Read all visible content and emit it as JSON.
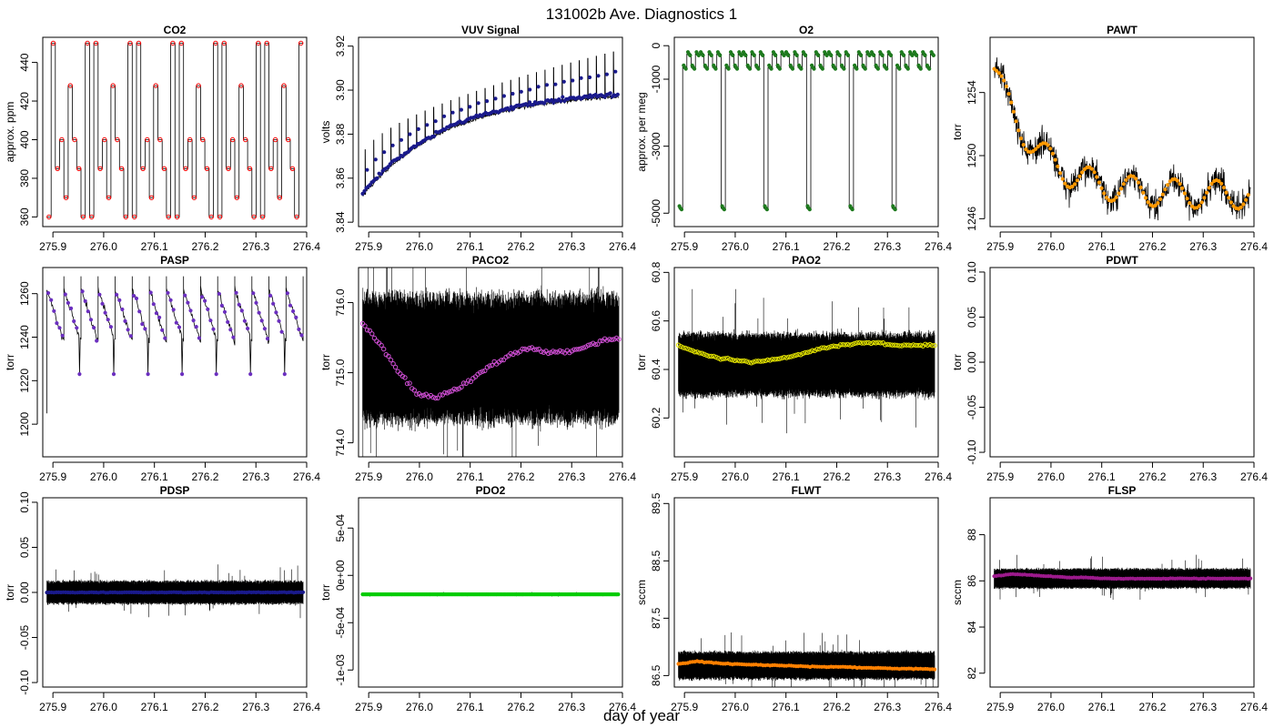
{
  "figure": {
    "title": "131002b   Ave. Diagnostics 1",
    "xlabel": "day of year"
  },
  "chart_data": [
    {
      "id": "co2",
      "type": "line",
      "title": "CO2",
      "ylabel": "approx. ppm",
      "xlim": [
        275.88,
        276.4
      ],
      "ylim": [
        355,
        453
      ],
      "xticks": [
        "275.9",
        "276.0",
        "276.1",
        "276.2",
        "276.3",
        "276.4"
      ],
      "yticks": [
        "360",
        "380",
        "400",
        "420",
        "440"
      ],
      "trace": "square-wave",
      "levels": [
        360,
        370,
        385,
        400,
        428,
        450
      ],
      "cycles": 30,
      "point_color": "#ff0000",
      "point_style": "open-circle"
    },
    {
      "id": "vuv",
      "type": "line",
      "title": "VUV Signal",
      "ylabel": "volts",
      "xlim": [
        275.88,
        276.4
      ],
      "ylim": [
        3.838,
        3.924
      ],
      "xticks": [
        "275.9",
        "276.0",
        "276.1",
        "276.2",
        "276.3",
        "276.4"
      ],
      "yticks": [
        "3.84",
        "3.86",
        "3.88",
        "3.90",
        "3.92"
      ],
      "trace": "drift-spikes",
      "start": 3.852,
      "end": 3.897,
      "spike_top_start": 3.87,
      "spike_top_end": 3.918,
      "cycles": 30,
      "point_color": "#1a1a8c",
      "point_style": "filled-dot"
    },
    {
      "id": "o2",
      "type": "line",
      "title": "O2",
      "ylabel": "approx. per meg",
      "xlim": [
        275.88,
        276.4
      ],
      "ylim": [
        -5400,
        250
      ],
      "xticks": [
        "275.9",
        "276.0",
        "276.1",
        "276.2",
        "276.3",
        "276.4"
      ],
      "yticks": [
        "0",
        "-1000",
        "-3000",
        "-5000"
      ],
      "trace": "square-wave",
      "levels": [
        -4850,
        -650,
        -250
      ],
      "cycles": 30,
      "point_color": "#1e7a1e",
      "point_style": "filled-dot"
    },
    {
      "id": "pawt",
      "type": "line",
      "title": "PAWT",
      "ylabel": "torr",
      "xlim": [
        275.88,
        276.4
      ],
      "ylim": [
        1245.5,
        1257.5
      ],
      "xticks": [
        "275.9",
        "276.0",
        "276.1",
        "276.2",
        "276.3",
        "276.4"
      ],
      "yticks": [
        "1246",
        "1250",
        "1254"
      ],
      "trace": "noisy-decay",
      "start": 1255.5,
      "end": 1247.5,
      "noise": 0.9,
      "point_color": "#ff9900",
      "point_style": "filled-dot"
    },
    {
      "id": "pasp",
      "type": "line",
      "title": "PASP",
      "ylabel": "torr",
      "xlim": [
        275.88,
        276.4
      ],
      "ylim": [
        1185,
        1272
      ],
      "xticks": [
        "275.9",
        "276.0",
        "276.1",
        "276.2",
        "276.3",
        "276.4"
      ],
      "yticks": [
        "1200",
        "1220",
        "1240",
        "1260"
      ],
      "trace": "sawtooth",
      "high": 1262,
      "low": 1238,
      "dip": 1223,
      "cycles": 15,
      "point_color": "#6b2fbf",
      "point_style": "filled-dot"
    },
    {
      "id": "paco2",
      "type": "line",
      "title": "PACO2",
      "ylabel": "torr",
      "xlim": [
        275.88,
        276.4
      ],
      "ylim": [
        713.8,
        716.5
      ],
      "xticks": [
        "275.9",
        "276.0",
        "276.1",
        "276.2",
        "276.3",
        "276.4"
      ],
      "yticks": [
        "714.0",
        "715.0",
        "716.0"
      ],
      "trace": "dense-band",
      "band_low": 714.35,
      "band_high": 716.05,
      "means": [
        715.7,
        715.4,
        715.0,
        714.7,
        714.65,
        714.75,
        714.9,
        715.1,
        715.25,
        715.35,
        715.3,
        715.3,
        715.35,
        715.45,
        715.5
      ],
      "point_color": "#d14fd6",
      "point_style": "open-circle"
    },
    {
      "id": "pao2",
      "type": "line",
      "title": "PAO2",
      "ylabel": "torr",
      "xlim": [
        275.88,
        276.4
      ],
      "ylim": [
        60.04,
        60.82
      ],
      "xticks": [
        "275.9",
        "276.0",
        "276.1",
        "276.2",
        "276.3",
        "276.4"
      ],
      "yticks": [
        "60.2",
        "60.4",
        "60.6",
        "60.8"
      ],
      "trace": "dense-band",
      "band_low": 60.3,
      "band_high": 60.54,
      "means": [
        60.5,
        60.47,
        60.45,
        60.44,
        60.43,
        60.44,
        60.45,
        60.47,
        60.49,
        60.5,
        60.51,
        60.51,
        60.5,
        60.5,
        60.5
      ],
      "point_color": "#e8e800",
      "point_style": "open-circle"
    },
    {
      "id": "pdwt",
      "type": "line",
      "title": "PDWT",
      "ylabel": "torr",
      "xlim": [
        275.88,
        276.4
      ],
      "ylim": [
        -0.105,
        0.105
      ],
      "xticks": [
        "275.9",
        "276.0",
        "276.1",
        "276.2",
        "276.3",
        "276.4"
      ],
      "yticks": [
        "-0.10",
        "-0.05",
        "0.00",
        "0.05",
        "0.10"
      ],
      "trace": "empty"
    },
    {
      "id": "pdsp",
      "type": "line",
      "title": "PDSP",
      "ylabel": "torr",
      "xlim": [
        275.88,
        276.4
      ],
      "ylim": [
        -0.105,
        0.105
      ],
      "xticks": [
        "275.9",
        "276.0",
        "276.1",
        "276.2",
        "276.3",
        "276.4"
      ],
      "yticks": [
        "-0.10",
        "-0.05",
        "0.00",
        "0.05",
        "0.10"
      ],
      "trace": "dense-band",
      "band_low": -0.012,
      "band_high": 0.012,
      "means": [
        0,
        0,
        0,
        0,
        0,
        0,
        0,
        0,
        0,
        0,
        0,
        0,
        0,
        0,
        0
      ],
      "point_color": "#1a1a8c",
      "point_style": "filled-dot"
    },
    {
      "id": "pdo2",
      "type": "line",
      "title": "PDO2",
      "ylabel": "torr",
      "xlim": [
        275.88,
        276.4
      ],
      "ylim": [
        -0.00118,
        0.00082
      ],
      "xticks": [
        "275.9",
        "276.0",
        "276.1",
        "276.2",
        "276.3",
        "276.4"
      ],
      "yticks": [
        "-1e-03",
        "-5e-04",
        "0e+00",
        "5e-04"
      ],
      "trace": "thin-band",
      "level": -0.0002,
      "point_color": "#00cc00",
      "point_style": "filled-dot"
    },
    {
      "id": "flwt",
      "type": "line",
      "title": "FLWT",
      "ylabel": "sccm",
      "xlim": [
        275.88,
        276.4
      ],
      "ylim": [
        86.3,
        89.6
      ],
      "xticks": [
        "275.9",
        "276.0",
        "276.1",
        "276.2",
        "276.3",
        "276.4"
      ],
      "yticks": [
        "86.5",
        "87.5",
        "88.5",
        "89.5"
      ],
      "trace": "dense-band",
      "band_low": 86.45,
      "band_high": 86.9,
      "means": [
        86.7,
        86.75,
        86.72,
        86.7,
        86.69,
        86.68,
        86.67,
        86.66,
        86.65,
        86.65,
        86.64,
        86.63,
        86.62,
        86.62,
        86.61
      ],
      "point_color": "#ff8000",
      "point_style": "filled-dot"
    },
    {
      "id": "flsp",
      "type": "line",
      "title": "FLSP",
      "ylabel": "sccm",
      "xlim": [
        275.88,
        276.4
      ],
      "ylim": [
        81.4,
        89.6
      ],
      "xticks": [
        "275.9",
        "276.0",
        "276.1",
        "276.2",
        "276.3",
        "276.4"
      ],
      "yticks": [
        "82",
        "84",
        "86",
        "88"
      ],
      "trace": "dense-band",
      "band_low": 85.7,
      "band_high": 86.5,
      "means": [
        86.2,
        86.3,
        86.25,
        86.2,
        86.15,
        86.15,
        86.1,
        86.1,
        86.1,
        86.1,
        86.1,
        86.1,
        86.1,
        86.1,
        86.1
      ],
      "point_color": "#9c1a8c",
      "point_style": "filled-dot"
    }
  ]
}
